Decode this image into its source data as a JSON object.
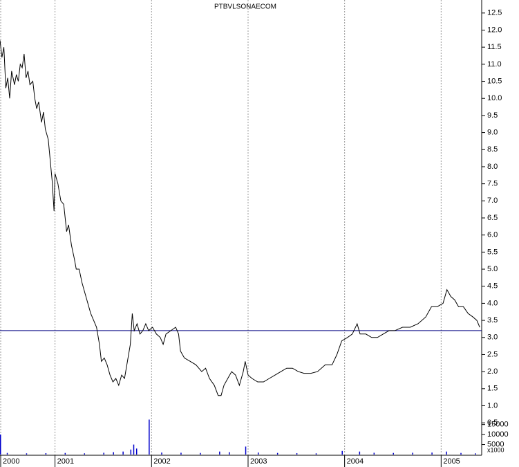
{
  "chart_data": [
    {
      "type": "line",
      "title": "PTBVLSONAECOM",
      "color": "#000000",
      "x": [
        2000.43,
        2000.45,
        2000.47,
        2000.49,
        2000.51,
        2000.53,
        2000.55,
        2000.58,
        2000.6,
        2000.62,
        2000.64,
        2000.66,
        2000.68,
        2000.7,
        2000.72,
        2000.74,
        2000.77,
        2000.79,
        2000.81,
        2000.83,
        2000.86,
        2000.88,
        2000.9,
        2000.93,
        2000.95,
        2000.97,
        2000.99,
        2001.0,
        2001.03,
        2001.06,
        2001.09,
        2001.12,
        2001.14,
        2001.17,
        2001.2,
        2001.22,
        2001.25,
        2001.28,
        2001.31,
        2001.34,
        2001.37,
        2001.4,
        2001.43,
        2001.46,
        2001.48,
        2001.51,
        2001.54,
        2001.57,
        2001.6,
        2001.63,
        2001.66,
        2001.69,
        2001.72,
        2001.75,
        2001.78,
        2001.8,
        2001.82,
        2001.85,
        2001.88,
        2001.91,
        2001.94,
        2001.97,
        2002.01,
        2002.05,
        2002.09,
        2002.12,
        2002.15,
        2002.2,
        2002.25,
        2002.28,
        2002.3,
        2002.34,
        2002.4,
        2002.46,
        2002.52,
        2002.56,
        2002.6,
        2002.65,
        2002.69,
        2002.72,
        2002.75,
        2002.79,
        2002.83,
        2002.87,
        2002.91,
        2002.95,
        2002.97,
        2003.0,
        2003.04,
        2003.1,
        2003.16,
        2003.22,
        2003.28,
        2003.34,
        2003.4,
        2003.46,
        2003.52,
        2003.58,
        2003.65,
        2003.72,
        2003.8,
        2003.87,
        2003.92,
        2003.97,
        2004.03,
        2004.08,
        2004.13,
        2004.16,
        2004.22,
        2004.28,
        2004.34,
        2004.4,
        2004.46,
        2004.52,
        2004.6,
        2004.68,
        2004.76,
        2004.84,
        2004.9,
        2004.96,
        2005.02,
        2005.06,
        2005.1,
        2005.14,
        2005.18,
        2005.23,
        2005.28,
        2005.33,
        2005.37,
        2005.4
      ],
      "values": [
        11.7,
        11.2,
        11.5,
        10.3,
        10.6,
        10.0,
        10.8,
        10.4,
        10.7,
        10.5,
        11.0,
        10.9,
        11.3,
        10.6,
        10.8,
        10.4,
        10.5,
        10.0,
        9.7,
        9.9,
        9.3,
        9.6,
        9.1,
        8.8,
        8.2,
        7.6,
        6.7,
        7.8,
        7.5,
        7.0,
        6.9,
        6.1,
        6.3,
        5.7,
        5.3,
        5.0,
        5.0,
        4.6,
        4.3,
        4.0,
        3.7,
        3.5,
        3.3,
        2.8,
        2.3,
        2.4,
        2.2,
        1.9,
        1.7,
        1.8,
        1.6,
        1.9,
        1.8,
        2.3,
        2.8,
        3.7,
        3.2,
        3.4,
        3.1,
        3.2,
        3.4,
        3.2,
        3.3,
        3.1,
        3.0,
        2.8,
        3.1,
        3.2,
        3.3,
        3.1,
        2.6,
        2.4,
        2.3,
        2.2,
        2.0,
        2.1,
        1.8,
        1.6,
        1.3,
        1.3,
        1.6,
        1.8,
        2.0,
        1.9,
        1.6,
        2.0,
        2.3,
        1.9,
        1.8,
        1.7,
        1.7,
        1.8,
        1.9,
        2.0,
        2.1,
        2.1,
        2.0,
        1.95,
        1.95,
        2.0,
        2.2,
        2.2,
        2.5,
        2.9,
        3.0,
        3.1,
        3.4,
        3.1,
        3.1,
        3.0,
        3.0,
        3.1,
        3.2,
        3.2,
        3.3,
        3.3,
        3.4,
        3.6,
        3.9,
        3.9,
        4.0,
        4.4,
        4.2,
        4.1,
        3.9,
        3.9,
        3.7,
        3.6,
        3.5,
        3.3
      ],
      "xlim": [
        2000.43,
        2005.42
      ],
      "xticks": [
        2000,
        2001,
        2002,
        2003,
        2004,
        2005
      ],
      "ylim": [
        0.2,
        12.8
      ],
      "yticks": [
        0.5,
        {
          "value": 1,
          "label": "1.0"
        },
        1.5,
        {
          "value": 2,
          "label": "2.0"
        },
        2.5,
        {
          "value": 3,
          "label": "3.0"
        },
        3.5,
        {
          "value": 4,
          "label": "4.0"
        },
        4.5,
        {
          "value": 5,
          "label": "5.0"
        },
        5.5,
        {
          "value": 6,
          "label": "6.0"
        },
        6.5,
        {
          "value": 7,
          "label": "7.0"
        },
        7.5,
        {
          "value": 8,
          "label": "8.0"
        },
        8.5,
        {
          "value": 9,
          "label": "9.0"
        },
        9.5,
        {
          "value": 10,
          "label": "10.0"
        },
        10.5,
        {
          "value": 11,
          "label": "11.0"
        },
        11.5,
        {
          "value": 12,
          "label": "12.0"
        },
        12.5
      ],
      "grid": true,
      "hline": {
        "value": 3.2,
        "color": "#000080"
      }
    },
    {
      "type": "bar",
      "color": "#0000cc",
      "ylabel": "x1000",
      "x": [
        2000.43,
        2000.5,
        2000.7,
        2000.9,
        2001.1,
        2001.3,
        2001.5,
        2001.6,
        2001.7,
        2001.78,
        2001.81,
        2001.84,
        2001.97,
        2002.1,
        2002.3,
        2002.5,
        2002.7,
        2002.8,
        2002.97,
        2003.1,
        2003.3,
        2003.5,
        2003.7,
        2003.97,
        2004.15,
        2004.3,
        2004.5,
        2004.7,
        2004.9,
        2005.05,
        2005.2,
        2005.35
      ],
      "values": [
        10000,
        800,
        600,
        700,
        800,
        600,
        900,
        1200,
        1500,
        2500,
        5000,
        3000,
        17500,
        1000,
        900,
        800,
        1500,
        1200,
        4000,
        1000,
        800,
        700,
        600,
        1800,
        1500,
        900,
        800,
        900,
        1000,
        1500,
        800,
        600
      ],
      "xlim": [
        2000.43,
        2005.42
      ],
      "ylim": [
        0,
        18000
      ],
      "yticks": [
        5000,
        10000,
        15000
      ]
    }
  ]
}
